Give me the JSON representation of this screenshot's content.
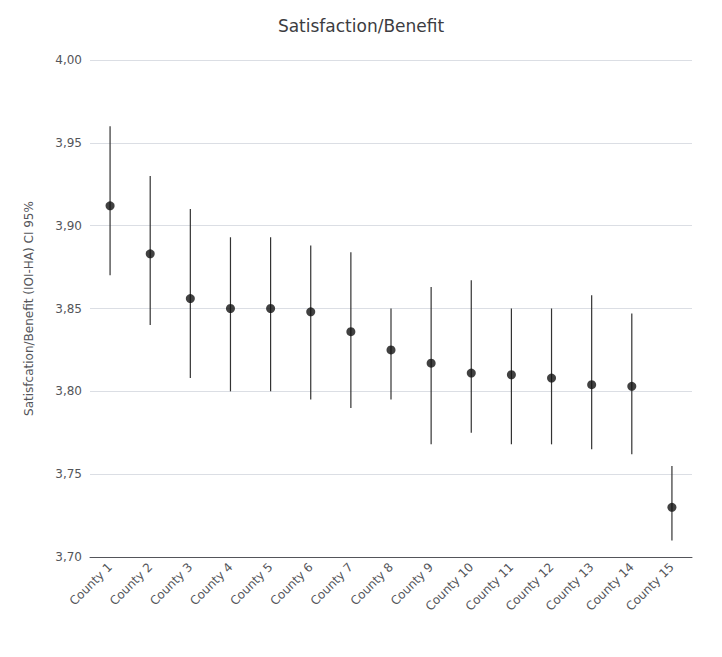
{
  "chart_data": {
    "type": "scatter",
    "title": "Satisfaction/Benefit",
    "ylabel": "Satisfcation/Benefit (IOI-HA) CI 95%",
    "categories": [
      "County 1",
      "County 2",
      "County 3",
      "County 4",
      "County 5",
      "County 6",
      "County 7",
      "County 8",
      "County 9",
      "County 10",
      "County 11",
      "County 12",
      "County 13",
      "County 14",
      "County 15"
    ],
    "values": [
      3.912,
      3.883,
      3.856,
      3.85,
      3.85,
      3.848,
      3.836,
      3.825,
      3.817,
      3.811,
      3.81,
      3.808,
      3.804,
      3.803,
      3.73
    ],
    "ci_lower": [
      3.87,
      3.84,
      3.808,
      3.8,
      3.8,
      3.795,
      3.79,
      3.795,
      3.768,
      3.775,
      3.768,
      3.768,
      3.765,
      3.762,
      3.71
    ],
    "ci_upper": [
      3.96,
      3.93,
      3.91,
      3.893,
      3.893,
      3.888,
      3.884,
      3.85,
      3.863,
      3.867,
      3.85,
      3.85,
      3.858,
      3.847,
      3.755
    ],
    "color": "#111111",
    "ylim": [
      3.7,
      4.0
    ],
    "yticks": [
      {
        "value": 3.7,
        "label": "3,70"
      },
      {
        "value": 3.75,
        "label": "3,75"
      },
      {
        "value": 3.8,
        "label": "3,80"
      },
      {
        "value": 3.85,
        "label": "3,85"
      },
      {
        "value": 3.9,
        "label": "3,90"
      },
      {
        "value": 3.95,
        "label": "3,95"
      },
      {
        "value": 4.0,
        "label": "4,00"
      }
    ],
    "grid": true
  }
}
